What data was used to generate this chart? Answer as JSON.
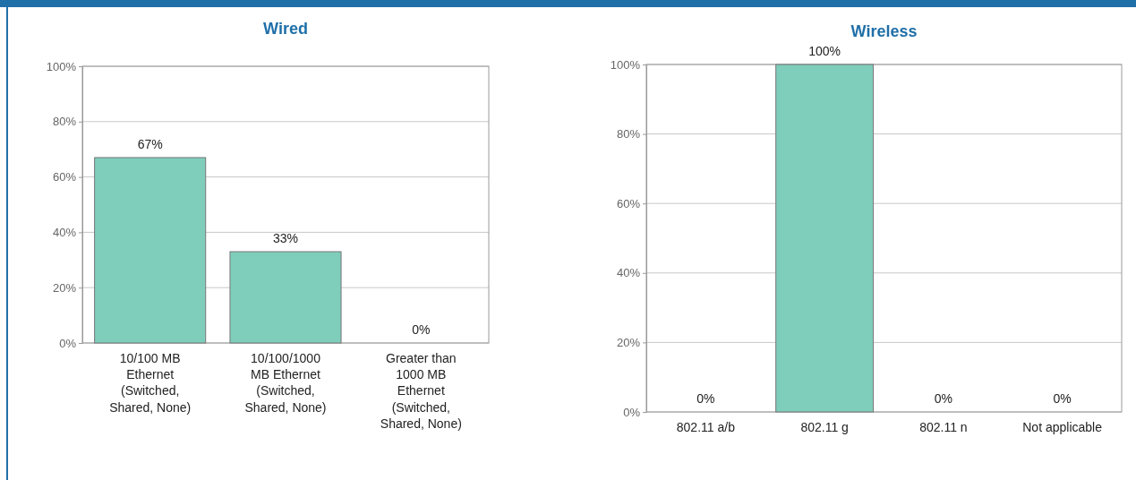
{
  "chart_data": [
    {
      "type": "bar",
      "title": "Wired",
      "categories": [
        "10/100 MB Ethernet (Switched, Shared, None)",
        "10/100/1000 MB Ethernet (Switched, Shared, None)",
        "Greater than 1000 MB Ethernet (Switched, Shared, None)"
      ],
      "values": [
        67,
        33,
        0
      ],
      "color": "#7fcdbb",
      "ylim": [
        0,
        100
      ],
      "yticks": [
        {
          "value": 0,
          "label": "0%"
        },
        {
          "value": 20,
          "label": "20%"
        },
        {
          "value": 40,
          "label": "40%"
        },
        {
          "value": 60,
          "label": "60%"
        },
        {
          "value": 80,
          "label": "80%"
        },
        {
          "value": 100,
          "label": "100%"
        }
      ],
      "grid": "y",
      "value_labels": [
        "67%",
        "33%",
        "0%"
      ]
    },
    {
      "type": "bar",
      "title": "Wireless",
      "categories": [
        "802.11 a/b",
        "802.11 g",
        "802.11 n",
        "Not applicable"
      ],
      "values": [
        0,
        100,
        0,
        0
      ],
      "color": "#7fcdbb",
      "ylim": [
        0,
        100
      ],
      "yticks": [
        {
          "value": 0,
          "label": "0%"
        },
        {
          "value": 20,
          "label": "20%"
        },
        {
          "value": 40,
          "label": "40%"
        },
        {
          "value": 60,
          "label": "60%"
        },
        {
          "value": 80,
          "label": "80%"
        },
        {
          "value": 100,
          "label": "100%"
        }
      ],
      "grid": "y",
      "value_labels": [
        "0%",
        "100%",
        "0%",
        "0%"
      ]
    }
  ]
}
